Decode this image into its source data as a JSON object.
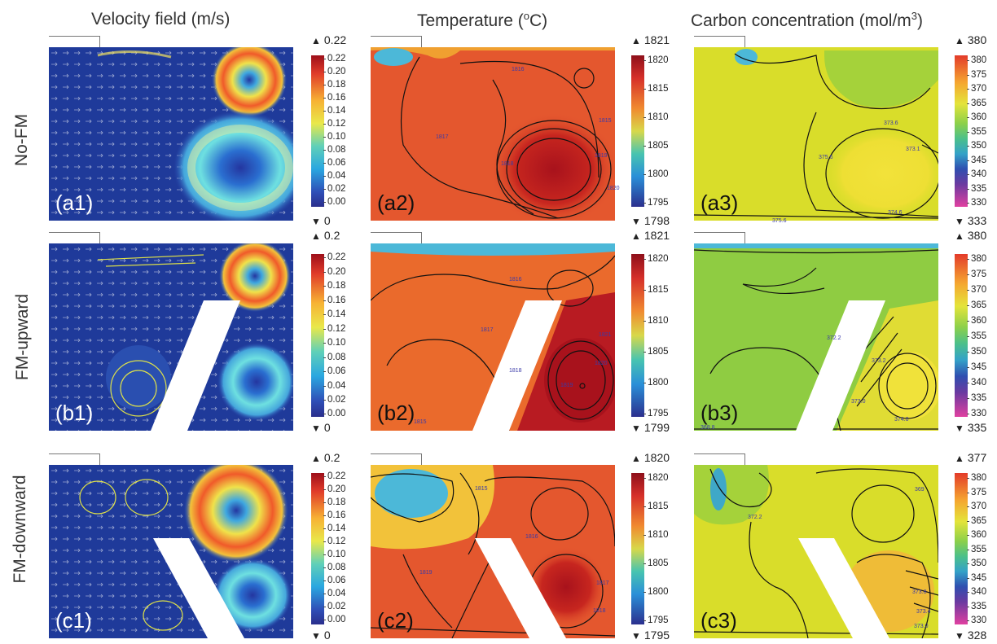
{
  "columns": [
    {
      "title": "Velocity field (m/s)"
    },
    {
      "title": "Temperature (",
      "sup": "o",
      "title_end": "C)"
    },
    {
      "title": "Carbon concentration (mol/m",
      "sup": "3",
      "title_end": ")"
    }
  ],
  "rows": [
    {
      "label": "No-FM"
    },
    {
      "label": "FM-upward"
    },
    {
      "label": "FM-downward"
    }
  ],
  "colorbars": {
    "velocity": {
      "ticks": [
        "0.22",
        "0.20",
        "0.18",
        "0.16",
        "0.14",
        "0.12",
        "0.10",
        "0.08",
        "0.06",
        "0.04",
        "0.02",
        "0.00"
      ],
      "max_labels": [
        "0.22",
        "0.2",
        "0.2"
      ],
      "min_labels": [
        "0",
        "0",
        "0"
      ]
    },
    "temperature": {
      "ticks": [
        "1820",
        "1815",
        "1810",
        "1805",
        "1800",
        "1795"
      ],
      "max_labels": [
        "1821",
        "1821",
        "1820"
      ],
      "min_labels": [
        "1798",
        "1799",
        "1795"
      ]
    },
    "carbon": {
      "ticks": [
        "380",
        "375",
        "370",
        "365",
        "360",
        "355",
        "350",
        "345",
        "340",
        "335",
        "330"
      ],
      "max_labels": [
        "380",
        "380",
        "377"
      ],
      "min_labels": [
        "333",
        "335",
        "328"
      ]
    }
  },
  "panels": [
    {
      "label": "(a1)"
    },
    {
      "label": "(a2)"
    },
    {
      "label": "(a3)"
    },
    {
      "label": "(b1)"
    },
    {
      "label": "(b2)"
    },
    {
      "label": "(b3)"
    },
    {
      "label": "(c1)"
    },
    {
      "label": "(c2)"
    },
    {
      "label": "(c3)"
    }
  ],
  "contour_labels": {
    "a2": [
      "1816",
      "1817",
      "1818",
      "1819",
      "1820",
      "1815"
    ],
    "a3": [
      "373.6",
      "373.1",
      "374.6",
      "375.6",
      "375.6"
    ],
    "b2": [
      "1816",
      "1817",
      "1818",
      "1819",
      "1820",
      "1821",
      "1815"
    ],
    "b3": [
      "372.2",
      "373.2",
      "374.0",
      "373.0",
      "368.8"
    ],
    "c2": [
      "1815",
      "1816",
      "1817",
      "1818",
      "1819"
    ],
    "c3": [
      "369",
      "372.2",
      "373.4",
      "373.0",
      "373.8"
    ]
  },
  "colors": {
    "jet_low": "#2a2e8c",
    "jet_high": "#b81b22",
    "velocity_bg": "#1f3a9a",
    "temp_bg": "#e4572e",
    "carbon_bg": "#d9dd2a"
  }
}
